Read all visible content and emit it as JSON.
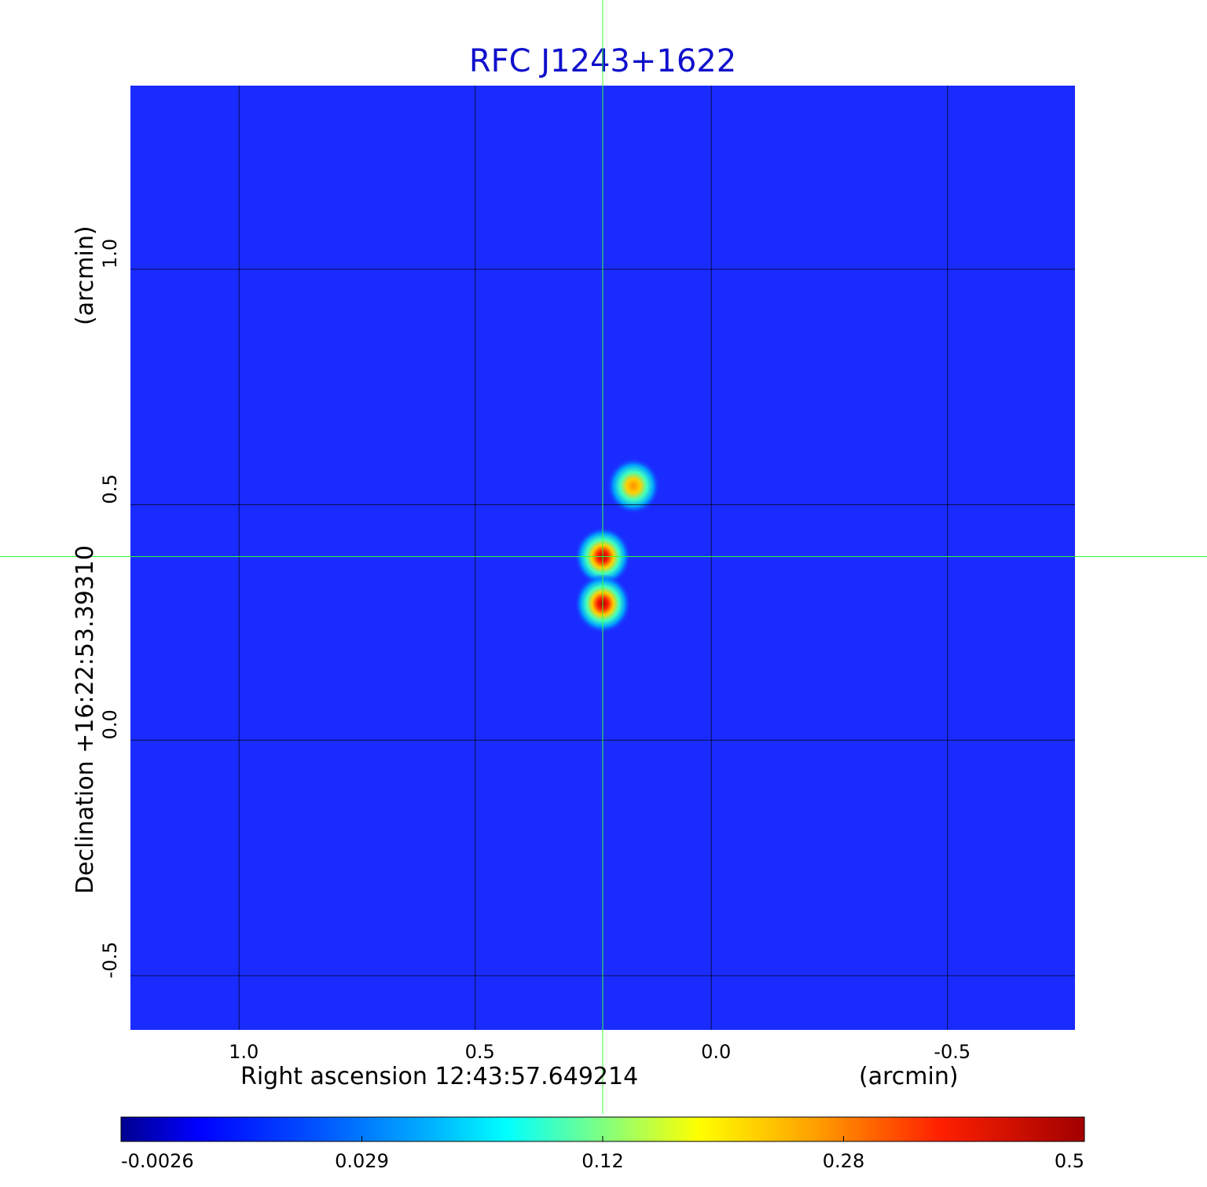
{
  "chart_data": {
    "type": "heatmap",
    "title": "RFC J1243+1622",
    "xlabel": "Right ascension  12:43:57.649214",
    "xunit": "(arcmin)",
    "ylabel": "Declination  +16:22:53.39310",
    "yunit": "(arcmin)",
    "x_ticks": [
      "1.0",
      "0.5",
      "0.0",
      "-0.5"
    ],
    "x_tick_values": [
      1.0,
      0.5,
      0.0,
      -0.5
    ],
    "y_ticks": [
      "1.0",
      "0.5",
      "0.0",
      "-0.5"
    ],
    "y_tick_values": [
      1.0,
      0.5,
      0.0,
      -0.5
    ],
    "xlim": [
      1.23,
      -0.77
    ],
    "ylim": [
      -0.615,
      1.39
    ],
    "grid": true,
    "crosshair": {
      "x": 0.23,
      "y": 0.39,
      "color": "#33ff33"
    },
    "colorbar": {
      "ticks": [
        "-0.0026",
        "0.029",
        "0.12",
        "0.28",
        "0.5"
      ],
      "tick_values": [
        -0.0026,
        0.029,
        0.12,
        0.28,
        0.5
      ],
      "colormap": "jet"
    },
    "sources": [
      {
        "x": 0.23,
        "y": 0.39,
        "peak": 0.5
      },
      {
        "x": 0.23,
        "y": 0.29,
        "peak": 0.5
      },
      {
        "x": 0.165,
        "y": 0.54,
        "peak": 0.3
      }
    ]
  }
}
